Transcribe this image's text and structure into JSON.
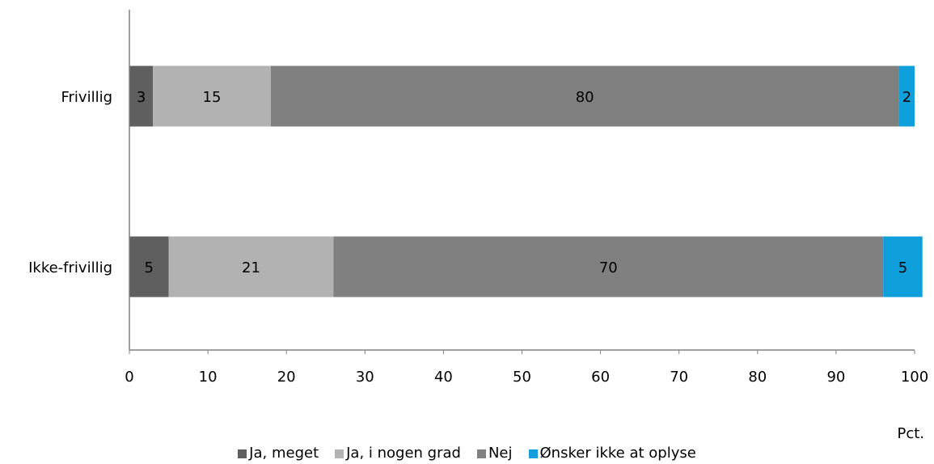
{
  "chart_data": {
    "type": "bar",
    "orientation": "horizontal",
    "stacked": true,
    "categories": [
      "Frivillig",
      "Ikke-frivillig"
    ],
    "series": [
      {
        "name": "Ja, meget",
        "values": [
          3,
          5
        ],
        "color": "#5f5f5f"
      },
      {
        "name": "Ja, i nogen grad",
        "values": [
          15,
          21
        ],
        "color": "#b2b2b2"
      },
      {
        "name": "Nej",
        "values": [
          80,
          70
        ],
        "color": "#808080"
      },
      {
        "name": "Ønsker ikke at oplyse",
        "values": [
          2,
          5
        ],
        "color": "#0fa0dc"
      }
    ],
    "xlim": [
      0,
      100
    ],
    "xticks": [
      0,
      10,
      20,
      30,
      40,
      50,
      60,
      70,
      80,
      90,
      100
    ],
    "xlabel": "Pct.",
    "grid": false,
    "legend_position": "bottom"
  }
}
